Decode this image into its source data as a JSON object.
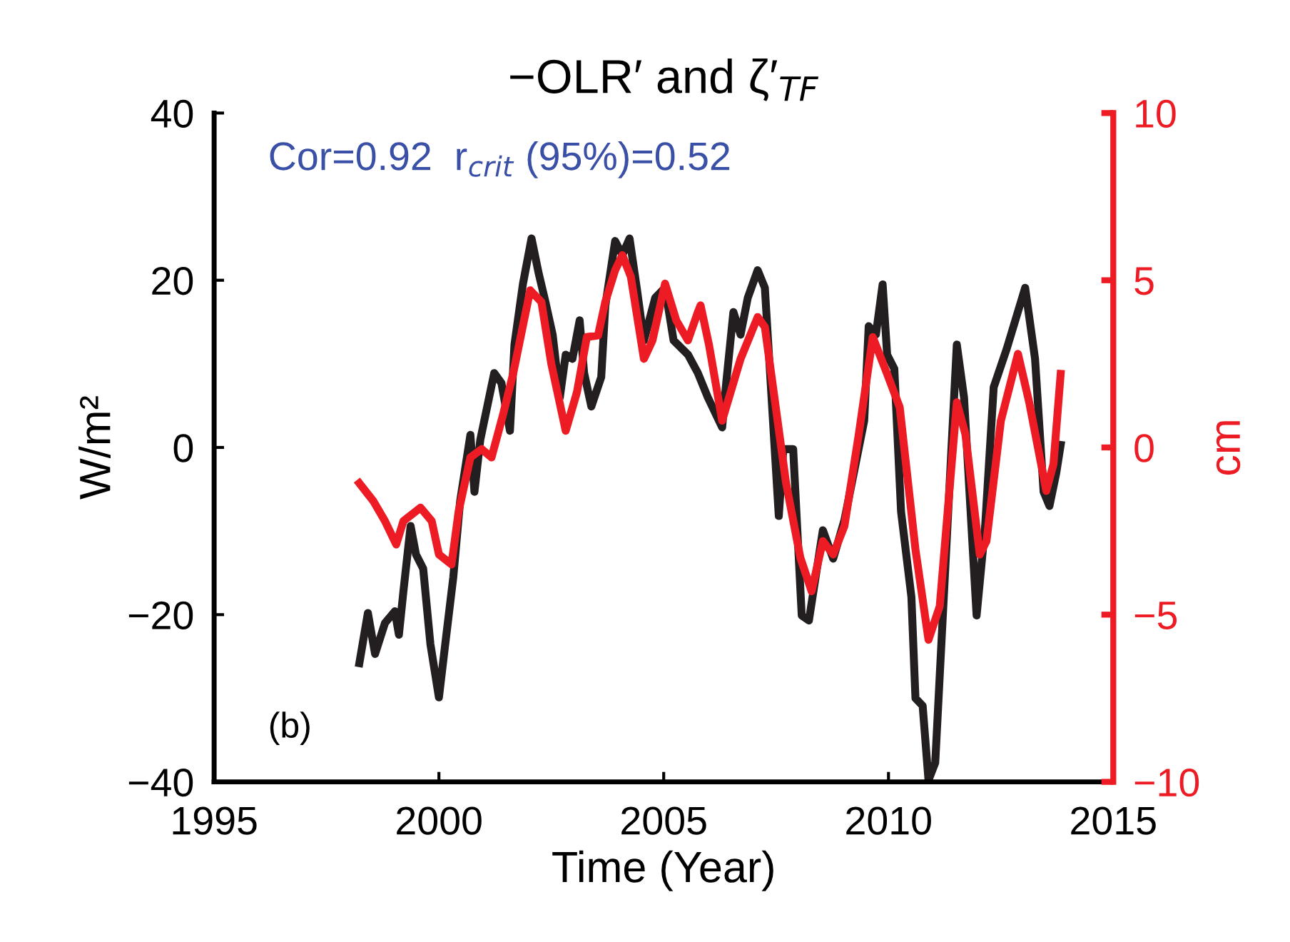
{
  "chart_data": {
    "type": "line",
    "title": "−OLR′ and ζ′$_{TF}$",
    "xlabel": "Time (Year)",
    "ylabel": "W/m²",
    "y2label": "cm",
    "annotations": [
      "Cor=0.92  r$_{crit}$ (95%)=0.52",
      "(b)"
    ],
    "xlim": [
      1995,
      2015
    ],
    "xticks": [
      1995,
      2000,
      2005,
      2010,
      2015
    ],
    "ylim": [
      -40,
      40
    ],
    "yticks": [
      -40,
      -20,
      0,
      20,
      40
    ],
    "y2lim": [
      -10,
      10
    ],
    "y2ticks": [
      -10,
      -5,
      0,
      5,
      10
    ],
    "grid": false,
    "legend": false,
    "line_style": "solid",
    "marker": "none",
    "series": [
      {
        "color": "#231f20",
        "x": [
          1998.23,
          1998.42,
          1998.58,
          1998.8,
          1999.02,
          1999.11,
          1999.21,
          1999.37,
          1999.49,
          1999.65,
          1999.81,
          2000.0,
          2000.13,
          2000.32,
          2000.47,
          2000.7,
          2000.79,
          2000.92,
          2001.23,
          2001.39,
          2001.58,
          2001.68,
          2001.87,
          2002.06,
          2002.22,
          2002.37,
          2002.53,
          2002.69,
          2002.82,
          2002.97,
          2003.13,
          2003.23,
          2003.39,
          2003.61,
          2003.7,
          2003.92,
          2004.08,
          2004.24,
          2004.4,
          2004.56,
          2004.81,
          2005.03,
          2005.22,
          2005.54,
          2005.76,
          2005.98,
          2006.3,
          2006.39,
          2006.55,
          2006.71,
          2006.87,
          2007.09,
          2007.25,
          2007.56,
          2007.66,
          2007.88,
          2008.07,
          2008.23,
          2008.54,
          2008.77,
          2009.02,
          2009.46,
          2009.56,
          2009.72,
          2009.87,
          2009.97,
          2010.13,
          2010.28,
          2010.51,
          2010.6,
          2010.76,
          2010.89,
          2011.04,
          2011.23,
          2011.52,
          2011.68,
          2011.96,
          2012.15,
          2012.34,
          2012.63,
          2013.04,
          2013.26,
          2013.45,
          2013.58,
          2013.73,
          2013.83
        ],
        "values": [
          -25.8,
          -19.8,
          -24.7,
          -21,
          -19.6,
          -22.4,
          -17.2,
          -9.4,
          -12.8,
          -14.5,
          -23.5,
          -29.9,
          -24,
          -15.5,
          -6.5,
          1.5,
          -5.3,
          0.9,
          8.9,
          7.7,
          2,
          12.3,
          19.6,
          25,
          20.8,
          17.4,
          13.5,
          6,
          11.1,
          10.6,
          15.2,
          8.9,
          4.9,
          8.4,
          16.9,
          24.7,
          23,
          25,
          19.1,
          12.8,
          17.9,
          19.1,
          12.8,
          11.1,
          8.9,
          6,
          2.4,
          7.7,
          16.2,
          13.5,
          17.9,
          21.2,
          19.1,
          -8.2,
          -0.2,
          -0.2,
          -20.1,
          -20.7,
          -9.9,
          -13.3,
          -8.7,
          3.2,
          14.5,
          13.5,
          19.5,
          11.1,
          9.4,
          -7.7,
          -17.9,
          -30,
          -30.9,
          -39.8,
          -37.7,
          -17.9,
          12.3,
          6,
          -20.1,
          -9.4,
          7.2,
          11.8,
          19.1,
          10.6,
          -5.3,
          -7,
          -3.1,
          0.3
        ]
      },
      {
        "color": "#ed1c24",
        "axis": "y2",
        "x": [
          1998.23,
          1998.54,
          1998.8,
          1999.05,
          1999.21,
          1999.59,
          1999.84,
          2000.0,
          2000.28,
          2000.44,
          2000.7,
          2000.95,
          2001.17,
          2001.42,
          2001.65,
          2002.03,
          2002.28,
          2002.5,
          2002.82,
          2003.07,
          2003.29,
          2003.54,
          2003.7,
          2003.92,
          2004.08,
          2004.27,
          2004.56,
          2004.75,
          2005.03,
          2005.28,
          2005.54,
          2005.76,
          2005.82,
          2006.01,
          2006.3,
          2006.71,
          2007.09,
          2007.25,
          2007.72,
          2008.04,
          2008.29,
          2008.54,
          2008.77,
          2009.02,
          2009.34,
          2009.65,
          2009.97,
          2010.25,
          2010.6,
          2010.89,
          2011.14,
          2011.52,
          2011.71,
          2012.03,
          2012.18,
          2012.5,
          2012.88,
          2013.13,
          2013.51,
          2013.67,
          2013.83
        ],
        "values": [
          -1.07,
          -1.6,
          -2.2,
          -2.9,
          -2.2,
          -1.8,
          -2.2,
          -3.2,
          -3.5,
          -1.9,
          -0.3,
          -0.05,
          -0.3,
          0.95,
          2.2,
          4.7,
          4.35,
          2.5,
          0.5,
          1.65,
          3.3,
          3.35,
          4.35,
          5.3,
          5.75,
          5.1,
          2.65,
          3.2,
          4.9,
          3.8,
          3.2,
          4.05,
          4.25,
          3.05,
          0.8,
          2.65,
          3.9,
          3.6,
          -1.05,
          -3.3,
          -4.3,
          -2.8,
          -3.2,
          -2.35,
          0.4,
          3.3,
          2.2,
          1.2,
          -3.05,
          -5.75,
          -4.75,
          1.35,
          0.4,
          -3.2,
          -2.8,
          0.8,
          2.8,
          1.35,
          -1.3,
          -0.5,
          2.2
        ]
      }
    ]
  }
}
